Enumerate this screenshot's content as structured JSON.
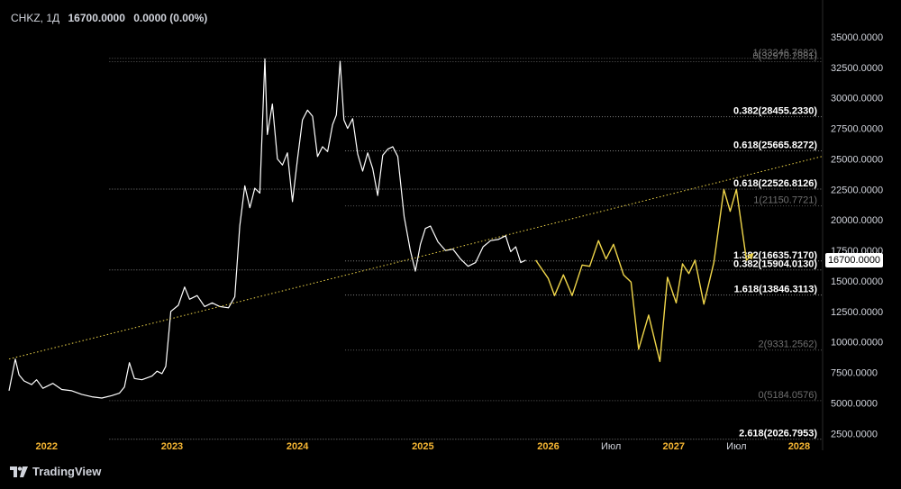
{
  "header": {
    "symbol": "CHKZ",
    "timeframe": "1Д",
    "last": "16700.0000",
    "change": "0.0000 (0.00%)"
  },
  "branding": {
    "logo_text": "TradingView"
  },
  "current_price": {
    "label": "16700.0000",
    "value": 16700
  },
  "colors": {
    "background": "#000000",
    "price_line": "#ffffff",
    "projection": "#f0d64a",
    "trendline": "#f0d64a",
    "axis_text": "#d1d4dc",
    "year_text": "#f7b733"
  },
  "chart_data": {
    "type": "line",
    "x_axis": {
      "labels": [
        {
          "t": 2022.0,
          "text": "2022",
          "kind": "year"
        },
        {
          "t": 2023.0,
          "text": "2023",
          "kind": "year"
        },
        {
          "t": 2024.0,
          "text": "2024",
          "kind": "year"
        },
        {
          "t": 2025.0,
          "text": "2025",
          "kind": "year"
        },
        {
          "t": 2026.0,
          "text": "2026",
          "kind": "year"
        },
        {
          "t": 2026.5,
          "text": "Июл",
          "kind": "month"
        },
        {
          "t": 2027.0,
          "text": "2027",
          "kind": "year"
        },
        {
          "t": 2027.5,
          "text": "Июл",
          "kind": "month"
        },
        {
          "t": 2028.0,
          "text": "2028",
          "kind": "year"
        }
      ],
      "range": [
        2021.7,
        2028.18
      ]
    },
    "y_axis": {
      "ticks": [
        {
          "v": 35000,
          "text": "35000.0000"
        },
        {
          "v": 32500,
          "text": "32500.0000"
        },
        {
          "v": 30000,
          "text": "30000.0000"
        },
        {
          "v": 27500,
          "text": "27500.0000"
        },
        {
          "v": 25000,
          "text": "25000.0000"
        },
        {
          "v": 22500,
          "text": "22500.0000"
        },
        {
          "v": 20000,
          "text": "20000.0000"
        },
        {
          "v": 17500,
          "text": "17500.0000"
        },
        {
          "v": 15000,
          "text": "15000.0000"
        },
        {
          "v": 12500,
          "text": "12500.0000"
        },
        {
          "v": 10000,
          "text": "10000.0000"
        },
        {
          "v": 7500,
          "text": "7500.0000"
        },
        {
          "v": 5000,
          "text": "5000.0000"
        },
        {
          "v": 2500,
          "text": "2500.0000"
        }
      ],
      "range": [
        2300,
        36550
      ],
      "scale": "linear"
    },
    "grid": false,
    "series": [
      {
        "role": "price",
        "points": [
          [
            2021.7,
            6000
          ],
          [
            2021.75,
            8600
          ],
          [
            2021.78,
            7300
          ],
          [
            2021.82,
            6800
          ],
          [
            2021.88,
            6500
          ],
          [
            2021.92,
            6900
          ],
          [
            2021.97,
            6200
          ],
          [
            2022.05,
            6600
          ],
          [
            2022.12,
            6100
          ],
          [
            2022.2,
            6000
          ],
          [
            2022.28,
            5700
          ],
          [
            2022.36,
            5500
          ],
          [
            2022.44,
            5400
          ],
          [
            2022.52,
            5600
          ],
          [
            2022.58,
            5800
          ],
          [
            2022.62,
            6300
          ],
          [
            2022.66,
            8300
          ],
          [
            2022.7,
            7000
          ],
          [
            2022.76,
            6900
          ],
          [
            2022.84,
            7200
          ],
          [
            2022.88,
            7600
          ],
          [
            2022.92,
            7400
          ],
          [
            2022.95,
            8000
          ],
          [
            2022.99,
            12500
          ],
          [
            2023.05,
            13000
          ],
          [
            2023.1,
            14500
          ],
          [
            2023.14,
            13500
          ],
          [
            2023.2,
            13800
          ],
          [
            2023.26,
            12900
          ],
          [
            2023.32,
            13200
          ],
          [
            2023.38,
            12900
          ],
          [
            2023.45,
            12800
          ],
          [
            2023.5,
            13700
          ],
          [
            2023.54,
            19500
          ],
          [
            2023.58,
            22800
          ],
          [
            2023.62,
            21000
          ],
          [
            2023.66,
            22600
          ],
          [
            2023.7,
            22200
          ],
          [
            2023.74,
            33200
          ],
          [
            2023.76,
            27000
          ],
          [
            2023.8,
            29500
          ],
          [
            2023.84,
            25000
          ],
          [
            2023.88,
            24500
          ],
          [
            2023.92,
            25500
          ],
          [
            2023.96,
            21500
          ],
          [
            2024.0,
            25000
          ],
          [
            2024.04,
            28200
          ],
          [
            2024.08,
            29000
          ],
          [
            2024.12,
            28500
          ],
          [
            2024.16,
            25200
          ],
          [
            2024.2,
            26000
          ],
          [
            2024.24,
            25600
          ],
          [
            2024.28,
            27800
          ],
          [
            2024.31,
            28600
          ],
          [
            2024.34,
            33000
          ],
          [
            2024.37,
            28200
          ],
          [
            2024.4,
            27500
          ],
          [
            2024.44,
            28300
          ],
          [
            2024.48,
            25400
          ],
          [
            2024.52,
            24000
          ],
          [
            2024.56,
            25500
          ],
          [
            2024.6,
            24200
          ],
          [
            2024.64,
            22000
          ],
          [
            2024.68,
            25300
          ],
          [
            2024.72,
            25800
          ],
          [
            2024.76,
            26000
          ],
          [
            2024.8,
            25200
          ],
          [
            2024.85,
            20300
          ],
          [
            2024.9,
            17500
          ],
          [
            2024.94,
            15800
          ],
          [
            2024.98,
            18000
          ],
          [
            2025.02,
            19300
          ],
          [
            2025.06,
            19500
          ],
          [
            2025.12,
            18200
          ],
          [
            2025.18,
            17500
          ],
          [
            2025.24,
            17600
          ],
          [
            2025.3,
            16800
          ],
          [
            2025.36,
            16200
          ],
          [
            2025.42,
            16500
          ],
          [
            2025.48,
            17800
          ],
          [
            2025.54,
            18300
          ],
          [
            2025.6,
            18400
          ],
          [
            2025.66,
            18700
          ],
          [
            2025.7,
            17400
          ],
          [
            2025.74,
            17800
          ],
          [
            2025.78,
            16500
          ],
          [
            2025.82,
            16700
          ]
        ]
      },
      {
        "role": "projection",
        "points": [
          [
            2025.9,
            16700
          ],
          [
            2026.0,
            15200
          ],
          [
            2026.05,
            13800
          ],
          [
            2026.12,
            15500
          ],
          [
            2026.19,
            13800
          ],
          [
            2026.27,
            16300
          ],
          [
            2026.33,
            16200
          ],
          [
            2026.4,
            18300
          ],
          [
            2026.46,
            16800
          ],
          [
            2026.52,
            18000
          ],
          [
            2026.6,
            15500
          ],
          [
            2026.66,
            14900
          ],
          [
            2026.72,
            9400
          ],
          [
            2026.8,
            12200
          ],
          [
            2026.89,
            8400
          ],
          [
            2026.95,
            15300
          ],
          [
            2027.02,
            13200
          ],
          [
            2027.07,
            16400
          ],
          [
            2027.12,
            15600
          ],
          [
            2027.17,
            16700
          ],
          [
            2027.24,
            13100
          ],
          [
            2027.32,
            16500
          ],
          [
            2027.4,
            22500
          ],
          [
            2027.45,
            20700
          ],
          [
            2027.5,
            22500
          ],
          [
            2027.58,
            16700
          ],
          [
            2027.63,
            17200
          ]
        ]
      },
      {
        "role": "trendline",
        "points": [
          [
            2021.7,
            8600
          ],
          [
            2028.18,
            25200
          ]
        ]
      }
    ],
    "fib_levels": [
      {
        "v": 33246.7682,
        "text": "1(33246.7682)",
        "start": 2022.5,
        "style": "dim"
      },
      {
        "v": 32970.2881,
        "text": "0(32970.2881)",
        "start": 2022.5,
        "style": "dim"
      },
      {
        "v": 28455.233,
        "text": "0.382(28455.2330)",
        "start": 2024.38,
        "style": "bold"
      },
      {
        "v": 25665.8272,
        "text": "0.618(25665.8272)",
        "start": 2024.38,
        "style": "bold"
      },
      {
        "v": 22526.8126,
        "text": "0.618(22526.8126)",
        "start": 2022.5,
        "style": "bold"
      },
      {
        "v": 21150.7721,
        "text": "1(21150.7721)",
        "start": 2024.38,
        "style": "dim"
      },
      {
        "v": 16635.717,
        "text": "1.382(16635.7170)",
        "start": 2024.38,
        "style": "bold"
      },
      {
        "v": 15904.013,
        "text": "0.382(15904.0130)",
        "start": 2022.5,
        "style": "bold"
      },
      {
        "v": 13846.3113,
        "text": "1.618(13846.3113)",
        "start": 2024.38,
        "style": "bold"
      },
      {
        "v": 9331.2562,
        "text": "2(9331.2562)",
        "start": 2024.38,
        "style": "dim"
      },
      {
        "v": 5184.0576,
        "text": "0(5184.0576)",
        "start": 2022.5,
        "style": "dim"
      },
      {
        "v": 2026.7953,
        "text": "2.618(2026.7953)",
        "start": 2022.5,
        "style": "bold"
      }
    ]
  }
}
